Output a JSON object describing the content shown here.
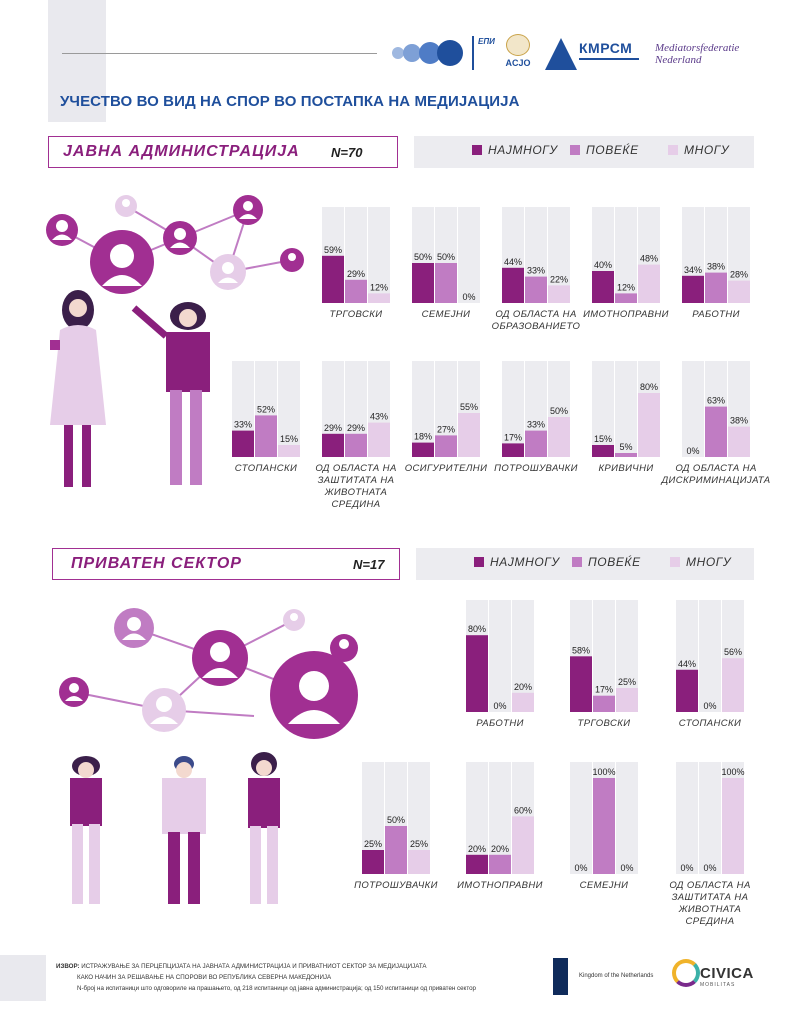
{
  "title": "УЧЕСТВО ВО ВИД НА СПОР ВО ПОСТАПКА НА МЕДИЈАЦИЈА",
  "logos": {
    "epi": "ЕПИ",
    "acjo": "ACJO",
    "kmrsm": "КМРСМ",
    "mediators": "Mediatorsfederatie Nederland",
    "netherlands": "Kingdom of the Netherlands",
    "civica": "CIVICA",
    "civica_sub": "MOBILITAS"
  },
  "legend": {
    "s1": "НАЈМНОГУ",
    "s2": "ПОВЕЌЕ",
    "s3": "МНОГУ"
  },
  "colors": {
    "s1": "#8a1f7c",
    "s2": "#c07cc3",
    "s3": "#e6cde8",
    "bg": "#ececf0",
    "accent": "#1f4f9c"
  },
  "public": {
    "label": "ЈАВНА АДМИНИСТРАЦИЈА",
    "n": "N=70"
  },
  "private": {
    "label": "ПРИВАТЕН СЕКТОР",
    "n": "N=17"
  },
  "footer": {
    "label": "ИЗВОР:",
    "line1": "ИСТРАЖУВАЊЕ ЗА ПЕРЦЕПЦИЈАТА НА ЈАВНАТА АДМИНИСТРАЦИЈА И ПРИВАТНИОТ СЕКТОР ЗА МЕДИЈАЦИЈАТА",
    "line2": "КАКО НАЧИН ЗА РЕШАВАЊЕ НА СПОРОВИ ВО РЕПУБЛИКА СЕВЕРНА МАКЕДОНИЈА",
    "line3": "N-број на испитаници што одговориле на прашањето, од 218 испитаници од јавна администрација; од 150 испитаници од приватен сектор"
  },
  "chart_data": [
    {
      "type": "bar",
      "series_names": [
        "НАЈМНОГУ",
        "ПОВЕЌЕ",
        "МНОГУ"
      ],
      "ylim": [
        0,
        100
      ],
      "charts": [
        {
          "label": [
            "ТРГОВСКИ"
          ],
          "values": [
            59,
            29,
            12
          ]
        },
        {
          "label": [
            "СЕМЕЈНИ"
          ],
          "values": [
            50,
            50,
            0
          ]
        },
        {
          "label": [
            "ОД ОБЛАСТА НА",
            "ОБРАЗОВАНИЕТО"
          ],
          "values": [
            44,
            33,
            22
          ]
        },
        {
          "label": [
            "ИМОТНОПРАВНИ"
          ],
          "values": [
            40,
            12,
            48
          ]
        },
        {
          "label": [
            "РАБОТНИ"
          ],
          "values": [
            34,
            38,
            28
          ]
        },
        {
          "label": [
            "СТОПАНСКИ"
          ],
          "values": [
            33,
            52,
            15
          ]
        },
        {
          "label": [
            "ОД ОБЛАСТА НА",
            "ЗАШТИТАТА НА",
            "ЖИВОТНАТА",
            "СРЕДИНА"
          ],
          "values": [
            29,
            29,
            43
          ]
        },
        {
          "label": [
            "ОСИГУРИТЕЛНИ"
          ],
          "values": [
            18,
            27,
            55
          ]
        },
        {
          "label": [
            "ПОТРОШУВАЧКИ"
          ],
          "values": [
            17,
            33,
            50
          ]
        },
        {
          "label": [
            "КРИВИЧНИ"
          ],
          "values": [
            15,
            5,
            80
          ]
        },
        {
          "label": [
            "ОД ОБЛАСТА НА",
            "ДИСКРИМИНАЦИЈАТА"
          ],
          "values": [
            0,
            63,
            38
          ]
        }
      ]
    },
    {
      "type": "bar",
      "series_names": [
        "НАЈМНОГУ",
        "ПОВЕЌЕ",
        "МНОГУ"
      ],
      "ylim": [
        0,
        100
      ],
      "charts": [
        {
          "label": [
            "РАБОТНИ"
          ],
          "values": [
            80,
            0,
            20
          ]
        },
        {
          "label": [
            "ТРГОВСКИ"
          ],
          "values": [
            58,
            17,
            25
          ]
        },
        {
          "label": [
            "СТОПАНСКИ"
          ],
          "values": [
            44,
            0,
            56
          ]
        },
        {
          "label": [
            "ПОТРОШУВАЧКИ"
          ],
          "values": [
            25,
            50,
            25
          ]
        },
        {
          "label": [
            "ИМОТНОПРАВНИ"
          ],
          "values": [
            20,
            20,
            60
          ]
        },
        {
          "label": [
            "СЕМЕЈНИ"
          ],
          "values": [
            0,
            100,
            0
          ]
        },
        {
          "label": [
            "ОД ОБЛАСТА НА",
            "ЗАШТИТАТА НА",
            "ЖИВОТНАТА",
            "СРЕДИНА"
          ],
          "values": [
            0,
            0,
            100
          ]
        }
      ]
    }
  ]
}
